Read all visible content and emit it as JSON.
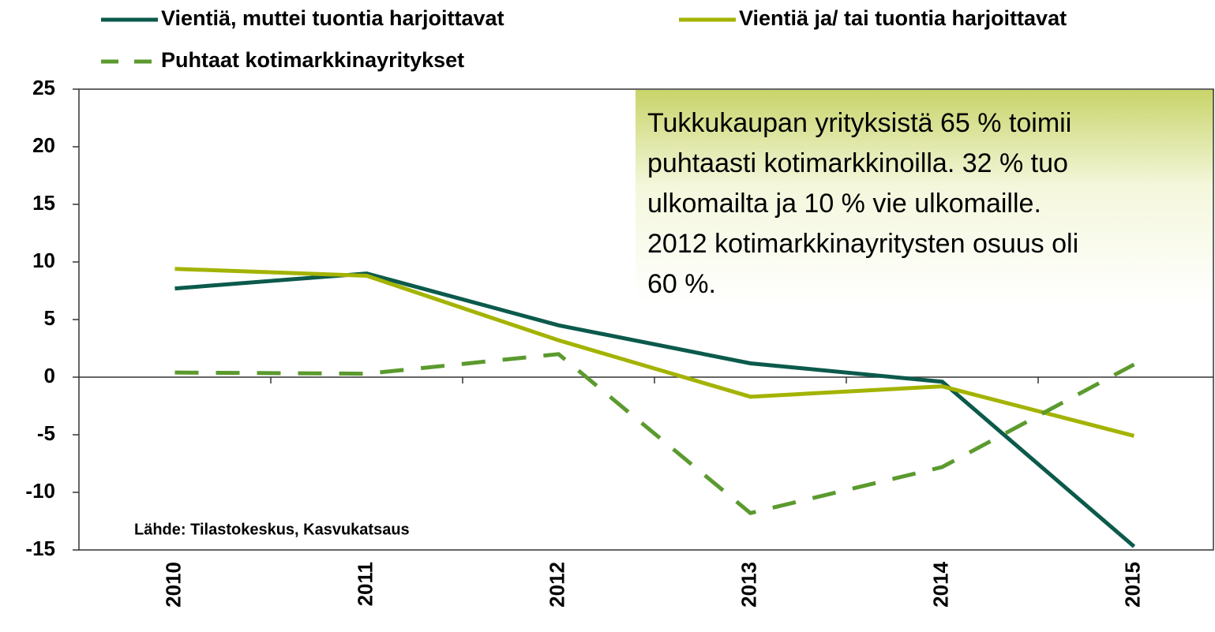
{
  "chart_data": {
    "type": "line",
    "categories": [
      "2010",
      "2011",
      "2012",
      "2013",
      "2014",
      "2015"
    ],
    "series": [
      {
        "name": "Vientiä, muttei tuontia harjoittavat",
        "color": "#0b5a4b",
        "dash": false,
        "values": [
          7.7,
          9.0,
          4.5,
          1.2,
          -0.4,
          -14.7
        ]
      },
      {
        "name": "Vientiä ja/ tai tuontia harjoittavat",
        "color": "#a3b300",
        "dash": false,
        "values": [
          9.4,
          8.8,
          3.2,
          -1.7,
          -0.8,
          -5.1
        ]
      },
      {
        "name": "Puhtaat kotimarkkinayritykset",
        "color": "#5b9a2e",
        "dash": true,
        "values": [
          0.4,
          0.3,
          2.0,
          -11.8,
          -7.8,
          1.1
        ]
      }
    ],
    "ylim": [
      -15,
      25
    ],
    "yticks": [
      -15,
      -10,
      -5,
      0,
      5,
      10,
      15,
      20,
      25
    ],
    "annotation": [
      "Tukkukaupan yrityksistä 65 % toimii",
      "puhtaasti kotimarkkinoilla. 32 % tuo",
      "ulkomailta ja 10 % vie ulkomaille.",
      "2012 kotimarkkinayritysten osuus oli",
      "60 %."
    ],
    "source": "Lähde: Tilastokeskus, Kasvukatsaus"
  }
}
